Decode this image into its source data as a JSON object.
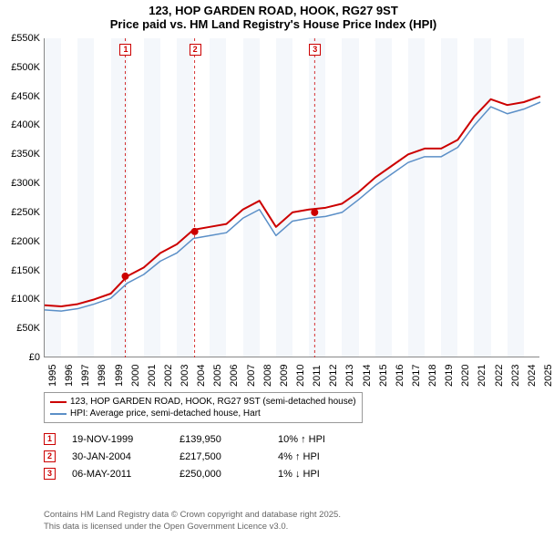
{
  "title": {
    "line1": "123, HOP GARDEN ROAD, HOOK, RG27 9ST",
    "line2": "Price paid vs. HM Land Registry's House Price Index (HPI)"
  },
  "chart": {
    "type": "line",
    "background_color": "#ffffff",
    "band_color": "#f4f7fb",
    "y": {
      "min": 0,
      "max": 550,
      "step": 50,
      "unit_prefix": "£",
      "unit_suffix": "K",
      "label_fontsize": 11
    },
    "x": {
      "years": [
        1995,
        1996,
        1997,
        1998,
        1999,
        2000,
        2001,
        2002,
        2003,
        2004,
        2005,
        2006,
        2007,
        2008,
        2009,
        2010,
        2011,
        2012,
        2013,
        2014,
        2015,
        2016,
        2017,
        2018,
        2019,
        2020,
        2021,
        2022,
        2023,
        2024,
        2025
      ],
      "label_fontsize": 11
    },
    "series": [
      {
        "name": "123, HOP GARDEN ROAD, HOOK, RG27 9ST (semi-detached house)",
        "color": "#cc0000",
        "width": 2,
        "points": [
          [
            0,
            90
          ],
          [
            1,
            88
          ],
          [
            2,
            92
          ],
          [
            3,
            100
          ],
          [
            4,
            110
          ],
          [
            5,
            140
          ],
          [
            6,
            155
          ],
          [
            7,
            180
          ],
          [
            8,
            195
          ],
          [
            9,
            220
          ],
          [
            10,
            225
          ],
          [
            11,
            230
          ],
          [
            12,
            255
          ],
          [
            13,
            270
          ],
          [
            14,
            225
          ],
          [
            15,
            250
          ],
          [
            16,
            255
          ],
          [
            17,
            258
          ],
          [
            18,
            265
          ],
          [
            19,
            285
          ],
          [
            20,
            310
          ],
          [
            21,
            330
          ],
          [
            22,
            350
          ],
          [
            23,
            360
          ],
          [
            24,
            360
          ],
          [
            25,
            375
          ],
          [
            26,
            415
          ],
          [
            27,
            445
          ],
          [
            28,
            435
          ],
          [
            29,
            440
          ],
          [
            30,
            450
          ]
        ]
      },
      {
        "name": "HPI: Average price, semi-detached house, Hart",
        "color": "#5b8fc7",
        "width": 1.5,
        "points": [
          [
            0,
            82
          ],
          [
            1,
            80
          ],
          [
            2,
            84
          ],
          [
            3,
            92
          ],
          [
            4,
            102
          ],
          [
            5,
            128
          ],
          [
            6,
            143
          ],
          [
            7,
            166
          ],
          [
            8,
            180
          ],
          [
            9,
            205
          ],
          [
            10,
            210
          ],
          [
            11,
            215
          ],
          [
            12,
            240
          ],
          [
            13,
            255
          ],
          [
            14,
            210
          ],
          [
            15,
            235
          ],
          [
            16,
            240
          ],
          [
            17,
            243
          ],
          [
            18,
            250
          ],
          [
            19,
            272
          ],
          [
            20,
            296
          ],
          [
            21,
            316
          ],
          [
            22,
            336
          ],
          [
            23,
            346
          ],
          [
            24,
            346
          ],
          [
            25,
            362
          ],
          [
            26,
            400
          ],
          [
            27,
            432
          ],
          [
            28,
            420
          ],
          [
            29,
            428
          ],
          [
            30,
            440
          ]
        ]
      }
    ],
    "sale_markers": [
      {
        "n": "1",
        "year_frac": 4.88,
        "value": 140
      },
      {
        "n": "2",
        "year_frac": 9.08,
        "value": 217
      },
      {
        "n": "3",
        "year_frac": 16.34,
        "value": 250
      }
    ],
    "vlines_color": "#cc0000",
    "vlines_dash": "3,3"
  },
  "legend": {
    "items": [
      {
        "color": "#cc0000",
        "label": "123, HOP GARDEN ROAD, HOOK, RG27 9ST (semi-detached house)"
      },
      {
        "color": "#5b8fc7",
        "label": "HPI: Average price, semi-detached house, Hart"
      }
    ]
  },
  "sales": [
    {
      "n": "1",
      "date": "19-NOV-1999",
      "price": "£139,950",
      "pct": "10% ↑ HPI"
    },
    {
      "n": "2",
      "date": "30-JAN-2004",
      "price": "£217,500",
      "pct": "4% ↑ HPI"
    },
    {
      "n": "3",
      "date": "06-MAY-2011",
      "price": "£250,000",
      "pct": "1% ↓ HPI"
    }
  ],
  "footer": {
    "line1": "Contains HM Land Registry data © Crown copyright and database right 2025.",
    "line2": "This data is licensed under the Open Government Licence v3.0."
  }
}
